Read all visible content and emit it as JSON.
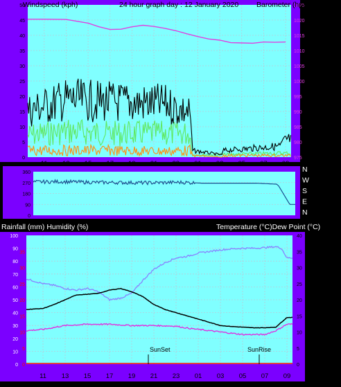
{
  "header": {
    "left": "Windspeed (kph)",
    "center": "24 hour graph day : 12 January 2020",
    "right": "Barometer (hpa)"
  },
  "labels": {
    "rain_humidity": "Rainfall (mm)  Humidity (%)",
    "temp_dew": "Temperature (°C)Dew Point (°C)",
    "sunset": "SunSet",
    "sunrise": "SunRise"
  },
  "colors": {
    "frame": "#7b00ff",
    "plot_bg": "#80ffff",
    "baro": "#e040e0",
    "wind_gust": "#000000",
    "wind_mid": "#60e860",
    "wind_avg": "#ff9010",
    "direction": "#1a5090",
    "temperature": "#8888ff",
    "dewpoint": "#000000",
    "humidity_mag": "#e030e0",
    "rain": "#ff0000"
  },
  "chart_data": [
    {
      "type": "line",
      "title": "24 hour graph day : 12 January 2020",
      "x_ticks": [
        "11",
        "13",
        "15",
        "17",
        "19",
        "21",
        "23",
        "01",
        "03",
        "05",
        "07",
        "09"
      ],
      "ylabel_left": "Windspeed (kph)",
      "ylabel_right": "Barometer (hpa)",
      "y_left_ticks": [
        "0",
        "5",
        "10",
        "15",
        "20",
        "25",
        "30",
        "35",
        "40",
        "45",
        "50"
      ],
      "y_right_ticks": [
        "975",
        "980",
        "985",
        "990",
        "995",
        "1000",
        "1005",
        "1010",
        "1015",
        "1020",
        "1025"
      ],
      "ylim_left": [
        0,
        50
      ],
      "ylim_right": [
        975,
        1025
      ],
      "series": [
        {
          "name": "Barometer",
          "axis": "right",
          "x": [
            9.5,
            11,
            13,
            15,
            16,
            17,
            18,
            19,
            20,
            21,
            22,
            23,
            24,
            25,
            26,
            27,
            28,
            29,
            30,
            31,
            32,
            33
          ],
          "y": [
            1020.3,
            1020.3,
            1020.2,
            1019.0,
            1017.8,
            1016.9,
            1017.0,
            1017.8,
            1018.3,
            1017.9,
            1017.3,
            1016.5,
            1015.5,
            1014.6,
            1013.8,
            1013.4,
            1012.6,
            1012.5,
            1012.4,
            1012.8,
            1012.7,
            1012.8
          ]
        },
        {
          "name": "Wind gust",
          "axis": "left",
          "profile": "x,y",
          "x": [
            9.5,
            13,
            17,
            22,
            24.3,
            24.5,
            27.2,
            27.3,
            32.5,
            33
          ],
          "y": [
            21,
            26,
            25,
            24,
            20,
            3,
            1,
            3,
            5,
            8
          ]
        },
        {
          "name": "Wind mid",
          "axis": "left",
          "profile": "x,y",
          "x": [
            9.5,
            13,
            17,
            22,
            24.3,
            24.5,
            32.5,
            33
          ],
          "y": [
            11,
            13,
            12,
            12,
            12,
            1,
            2,
            2
          ]
        },
        {
          "name": "Wind average",
          "axis": "left",
          "profile": "x,y",
          "x": [
            9.5,
            13,
            17,
            22,
            24.3,
            24.5,
            27.2,
            27.3,
            32.5,
            33
          ],
          "y": [
            4,
            4,
            4,
            3.5,
            4,
            1,
            0,
            1,
            1,
            1
          ]
        }
      ]
    },
    {
      "type": "line",
      "y_left_ticks": [
        "360",
        "270",
        "180",
        "90",
        "0"
      ],
      "y_right_ticks": [
        "N",
        "W",
        "S",
        "E",
        "N"
      ],
      "ylim": [
        0,
        360
      ],
      "series": [
        {
          "name": "Wind direction",
          "x": [
            9.5,
            12,
            15,
            18,
            20,
            23,
            24.3,
            25,
            30,
            31.8,
            32,
            33
          ],
          "y": [
            275,
            278,
            272,
            270,
            268,
            272,
            268,
            265,
            265,
            257,
            240,
            90
          ]
        }
      ]
    },
    {
      "type": "line",
      "x_ticks": [
        "11",
        "13",
        "15",
        "17",
        "19",
        "21",
        "23",
        "01",
        "03",
        "05",
        "07",
        "09"
      ],
      "y_left_ticks": [
        "0",
        "10",
        "20",
        "30",
        "40",
        "50",
        "60",
        "70",
        "80",
        "90",
        "100"
      ],
      "y_rain_ticks": [
        "0",
        "5",
        "10",
        "15",
        "20",
        "25",
        "30",
        "35"
      ],
      "y_right_ticks": [
        "0",
        "5",
        "10",
        "15",
        "20",
        "25",
        "30",
        "35",
        "40"
      ],
      "ylim_left": [
        0,
        100
      ],
      "ylim_right": [
        0,
        40
      ],
      "annotations": [
        {
          "text": "SunSet",
          "x": 20.5
        },
        {
          "text": "SunRise",
          "x": 30.5
        }
      ],
      "series": [
        {
          "name": "Temperature",
          "axis": "right",
          "x": [
            9.5,
            11,
            12,
            13,
            14,
            15,
            16,
            17,
            18,
            19,
            20,
            21,
            22,
            23,
            24,
            25,
            26,
            27,
            28,
            29,
            30,
            31,
            32,
            32.5,
            33
          ],
          "y": [
            26.5,
            25,
            24.5,
            23.5,
            23,
            23.5,
            22.5,
            20,
            20.5,
            22,
            26,
            29.5,
            31.5,
            33,
            33.5,
            34.5,
            35,
            35.5,
            35.8,
            36,
            36,
            36.2,
            36.5,
            36,
            33
          ]
        },
        {
          "name": "Dew point",
          "axis": "right",
          "x": [
            9.5,
            11,
            12,
            13,
            14,
            15,
            16,
            17,
            18,
            19,
            20,
            21,
            22,
            23,
            24,
            25,
            26,
            27,
            28,
            29,
            30,
            31,
            32,
            33
          ],
          "y": [
            17,
            17.3,
            18.5,
            20,
            21.5,
            21.7,
            22,
            23,
            23.5,
            22.5,
            21,
            18.5,
            17,
            16,
            15,
            14,
            13,
            12,
            11.7,
            11.5,
            11.3,
            11.3,
            11.5,
            14.5
          ]
        },
        {
          "name": "Humidity",
          "axis": "left",
          "x": [
            9.5,
            11,
            13,
            15,
            17,
            19,
            21,
            23,
            24,
            25,
            27,
            29,
            31,
            32,
            33
          ],
          "y": [
            26,
            27,
            30,
            31,
            31,
            30,
            30,
            29.5,
            28,
            27,
            25,
            23,
            23,
            26,
            31
          ]
        },
        {
          "name": "Rainfall",
          "axis": "rain",
          "x": [
            9.5,
            33
          ],
          "y": [
            0,
            0
          ]
        }
      ]
    }
  ]
}
